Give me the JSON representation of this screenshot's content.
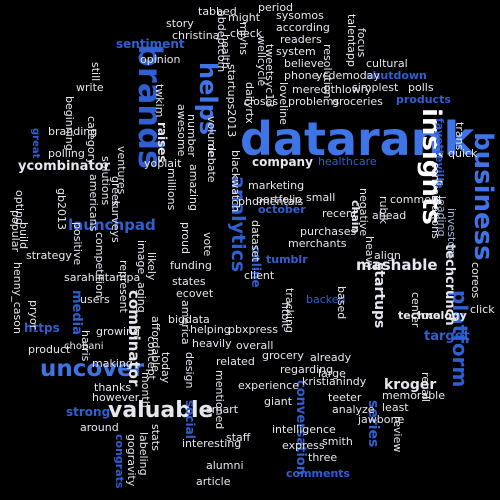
{
  "colors": {
    "background": "#000000",
    "palette": [
      "#2f5fd0",
      "#3e74e6",
      "#1f4fb8",
      "#5a86e8",
      "#e6e6ee",
      "#d0d4e8",
      "#a9b0d6",
      "#8a96c8",
      "#c8cde6",
      "#ffffff"
    ]
  },
  "words": [
    {
      "text": "datarank",
      "c": 1
    },
    {
      "text": "insights",
      "c": 9
    },
    {
      "text": "brands",
      "c": 0
    },
    {
      "text": "business",
      "c": 1
    },
    {
      "text": "helps",
      "c": 1
    },
    {
      "text": "uncover",
      "c": 1
    },
    {
      "text": "valuable",
      "c": 4
    },
    {
      "text": "platform",
      "c": 0
    },
    {
      "text": "analytics",
      "c": 0
    },
    {
      "text": "combinator",
      "c": 4
    },
    {
      "text": "mashable",
      "c": 4
    },
    {
      "text": "launchpad",
      "c": 0
    },
    {
      "text": "ycombinator",
      "c": 4
    },
    {
      "text": "techcrunch",
      "c": 4
    },
    {
      "text": "startups",
      "c": 4
    },
    {
      "text": "company",
      "c": 4
    },
    {
      "text": "healthcare",
      "c": 0
    },
    {
      "text": "target",
      "c": 0
    },
    {
      "text": "kroger",
      "c": 4
    },
    {
      "text": "strong",
      "c": 0
    },
    {
      "text": "media",
      "c": 0
    },
    {
      "text": "social",
      "c": 0
    },
    {
      "text": "comments",
      "c": 0
    },
    {
      "text": "conversation",
      "c": 0
    },
    {
      "text": "series",
      "c": 0
    },
    {
      "text": "https",
      "c": 0
    },
    {
      "text": "sentiment",
      "c": 0
    },
    {
      "text": "raises",
      "c": 4
    },
    {
      "text": "online",
      "c": 0
    },
    {
      "text": "funding",
      "c": 4
    },
    {
      "text": "investors",
      "c": 6
    },
    {
      "text": "leading",
      "c": 6
    },
    {
      "text": "chobani",
      "c": 4
    },
    {
      "text": "congrats",
      "c": 0
    },
    {
      "text": "intelligence",
      "c": 4
    },
    {
      "text": "experience",
      "c": 4
    },
    {
      "text": "regarding",
      "c": 4
    },
    {
      "text": "marketing",
      "c": 4
    },
    {
      "text": "portfolio",
      "c": 4
    },
    {
      "text": "merchants",
      "c": 4
    },
    {
      "text": "october",
      "c": 0
    },
    {
      "text": "kristianindy",
      "c": 4
    },
    {
      "text": "cultural",
      "c": 4
    },
    {
      "text": "shutdown",
      "c": 0
    },
    {
      "text": "simplest",
      "c": 4
    },
    {
      "text": "polls",
      "c": 4
    },
    {
      "text": "products",
      "c": 0
    },
    {
      "text": "fayetteville",
      "c": 0
    },
    {
      "text": "conversations",
      "c": 4
    },
    {
      "text": "quick",
      "c": 4
    },
    {
      "text": "trans",
      "c": 4
    },
    {
      "text": "closes",
      "c": 4
    },
    {
      "text": "problems",
      "c": 4
    },
    {
      "text": "groceries",
      "c": 4
    },
    {
      "text": "meredithlowry",
      "c": 4
    },
    {
      "text": "phone",
      "c": 4
    },
    {
      "text": "ycdemoday",
      "c": 4
    },
    {
      "text": "believe",
      "c": 4
    },
    {
      "text": "system",
      "c": 4
    },
    {
      "text": "readers",
      "c": 4
    },
    {
      "text": "according",
      "c": 4
    },
    {
      "text": "sysomos",
      "c": 4
    },
    {
      "text": "period",
      "c": 4
    },
    {
      "text": "tabbed",
      "c": 4
    },
    {
      "text": "might",
      "c": 4
    },
    {
      "text": "check",
      "c": 4
    },
    {
      "text": "christina",
      "c": 4
    },
    {
      "text": "story",
      "c": 4
    },
    {
      "text": "opinion",
      "c": 4
    },
    {
      "text": "write",
      "c": 4
    },
    {
      "text": "still",
      "c": 4
    },
    {
      "text": "beginning",
      "c": 4
    },
    {
      "text": "category",
      "c": 4
    },
    {
      "text": "branding",
      "c": 4
    },
    {
      "text": "polling",
      "c": 4
    },
    {
      "text": "great",
      "c": 0
    },
    {
      "text": "americans",
      "c": 4
    },
    {
      "text": "greek",
      "c": 4
    },
    {
      "text": "yoplait",
      "c": 4
    },
    {
      "text": "millions",
      "c": 4
    },
    {
      "text": "proud",
      "c": 4
    },
    {
      "text": "vote",
      "c": 4
    },
    {
      "text": "states",
      "c": 4
    },
    {
      "text": "ecovet",
      "c": 4
    },
    {
      "text": "america",
      "c": 4
    },
    {
      "text": "bigdata",
      "c": 4
    },
    {
      "text": "helping",
      "c": 4
    },
    {
      "text": "pbxpress",
      "c": 4
    },
    {
      "text": "heavily",
      "c": 4
    },
    {
      "text": "design",
      "c": 4
    },
    {
      "text": "month",
      "c": 4
    },
    {
      "text": "thanks",
      "c": 4
    },
    {
      "text": "however",
      "c": 4
    },
    {
      "text": "around",
      "c": 4
    },
    {
      "text": "making",
      "c": 4
    },
    {
      "text": "growing",
      "c": 4
    },
    {
      "text": "product",
      "c": 4
    },
    {
      "text": "harris",
      "c": 4
    },
    {
      "text": "users",
      "c": 4
    },
    {
      "text": "pryor",
      "c": 4
    },
    {
      "text": "sarahintampa",
      "c": 4
    },
    {
      "text": "strategy",
      "c": 4
    },
    {
      "text": "build",
      "c": 4
    },
    {
      "text": "opting",
      "c": 4
    },
    {
      "text": "popular",
      "c": 4
    },
    {
      "text": "henny_cason",
      "c": 4
    },
    {
      "text": "positive",
      "c": 4
    },
    {
      "text": "competition",
      "c": 4
    },
    {
      "text": "surveys",
      "c": 4
    },
    {
      "text": "represent",
      "c": 4
    },
    {
      "text": "image",
      "c": 4
    },
    {
      "text": "likely",
      "c": 4
    },
    {
      "text": "aging",
      "c": 4
    },
    {
      "text": "affordable",
      "c": 4
    },
    {
      "text": "concept",
      "c": 4
    },
    {
      "text": "today",
      "c": 4
    },
    {
      "text": "stats",
      "c": 4
    },
    {
      "text": "labeling",
      "c": 4
    },
    {
      "text": "gogravity",
      "c": 4
    },
    {
      "text": "interesting",
      "c": 4
    },
    {
      "text": "staff",
      "c": 4
    },
    {
      "text": "alumni",
      "c": 4
    },
    {
      "text": "article",
      "c": 4
    },
    {
      "text": "smart",
      "c": 4
    },
    {
      "text": "related",
      "c": 4
    },
    {
      "text": "mentioned",
      "c": 4
    },
    {
      "text": "grocery",
      "c": 4
    },
    {
      "text": "overall",
      "c": 4
    },
    {
      "text": "giant",
      "c": 4
    },
    {
      "text": "teeter",
      "c": 4
    },
    {
      "text": "analyze",
      "c": 4
    },
    {
      "text": "jawbone",
      "c": 4
    },
    {
      "text": "least",
      "c": 4
    },
    {
      "text": "memorable",
      "c": 4
    },
    {
      "text": "recall",
      "c": 4
    },
    {
      "text": "review",
      "c": 4
    },
    {
      "text": "smith",
      "c": 4
    },
    {
      "text": "three",
      "c": 4
    },
    {
      "text": "express",
      "c": 4
    },
    {
      "text": "large",
      "c": 4
    },
    {
      "text": "already",
      "c": 4
    },
    {
      "text": "negative",
      "c": 4
    },
    {
      "text": "rubik",
      "c": 4
    },
    {
      "text": "comment",
      "c": 4
    },
    {
      "text": "ahead",
      "c": 4
    },
    {
      "text": "heavy",
      "c": 4
    },
    {
      "text": "align",
      "c": 4
    },
    {
      "text": "local",
      "c": 4
    },
    {
      "text": "click",
      "c": 4
    },
    {
      "text": "coreos",
      "c": 4
    },
    {
      "text": "center",
      "c": 4
    },
    {
      "text": "technology",
      "c": 4
    },
    {
      "text": "chain",
      "c": 4
    },
    {
      "text": "tumblr",
      "c": 0
    },
    {
      "text": "backed",
      "c": 0
    },
    {
      "text": "based",
      "c": 4
    },
    {
      "text": "client",
      "c": 4
    },
    {
      "text": "tracking",
      "c": 4
    },
    {
      "text": "fitbit",
      "c": 4
    },
    {
      "text": "phdmentals",
      "c": 4
    },
    {
      "text": "dataset",
      "c": 4
    },
    {
      "text": "small",
      "c": 4
    },
    {
      "text": "recent",
      "c": 4
    },
    {
      "text": "purchases",
      "c": 4
    },
    {
      "text": "awesome",
      "c": 4
    },
    {
      "text": "number",
      "c": 4
    },
    {
      "text": "volume",
      "c": 4
    },
    {
      "text": "blackwatch",
      "c": 4
    },
    {
      "text": "dailyrtx",
      "c": 4
    },
    {
      "text": "debate",
      "c": 4
    },
    {
      "text": "health",
      "c": 4
    },
    {
      "text": "mjyhs",
      "c": 4
    },
    {
      "text": "startups2013",
      "c": 4
    },
    {
      "text": "wellcycle",
      "c": 4
    },
    {
      "text": "tweetsyc13",
      "c": 4
    },
    {
      "text": "abdeptcom",
      "c": 4
    },
    {
      "text": "loveline",
      "c": 4
    },
    {
      "text": "talentapp",
      "c": 4
    },
    {
      "text": "focus",
      "c": 4
    },
    {
      "text": "resolution",
      "c": 4
    },
    {
      "text": "twkim",
      "c": 4
    },
    {
      "text": "amazing",
      "c": 4
    },
    {
      "text": "solutions",
      "c": 4
    },
    {
      "text": "ventures",
      "c": 4
    },
    {
      "text": "gb2013",
      "c": 4
    },
    {
      "text": "wordmarks",
      "c": 4
    },
    {
      "text": "mensrch",
      "c": 4
    },
    {
      "text": "sunrise",
      "c": 4
    }
  ]
}
